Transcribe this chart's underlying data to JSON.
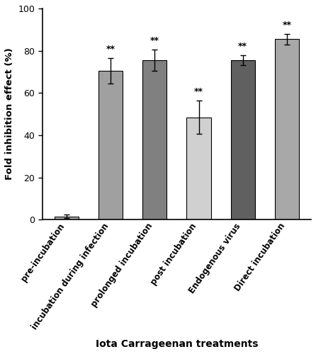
{
  "categories": [
    "pre-incubation",
    "incubation during infection",
    "prolonged incubation",
    "post incubation",
    "Endogenous virus",
    "Direct incubation"
  ],
  "values": [
    1.5,
    70.5,
    75.5,
    48.5,
    75.5,
    85.5
  ],
  "errors": [
    0.8,
    6.0,
    5.0,
    8.0,
    2.5,
    2.5
  ],
  "bar_colors": [
    "#b0b0b0",
    "#a0a0a0",
    "#808080",
    "#d0d0d0",
    "#606060",
    "#a8a8a8"
  ],
  "significance": [
    "",
    "**",
    "**",
    "**",
    "**",
    "**"
  ],
  "ylabel": "Fold inhibition effect (%)",
  "xlabel": "Iota Carrageenan treatments",
  "ylim": [
    0,
    100
  ],
  "yticks": [
    0,
    20,
    40,
    60,
    80,
    100
  ],
  "bar_width": 0.55,
  "figsize": [
    4.46,
    5.0
  ],
  "dpi": 100
}
